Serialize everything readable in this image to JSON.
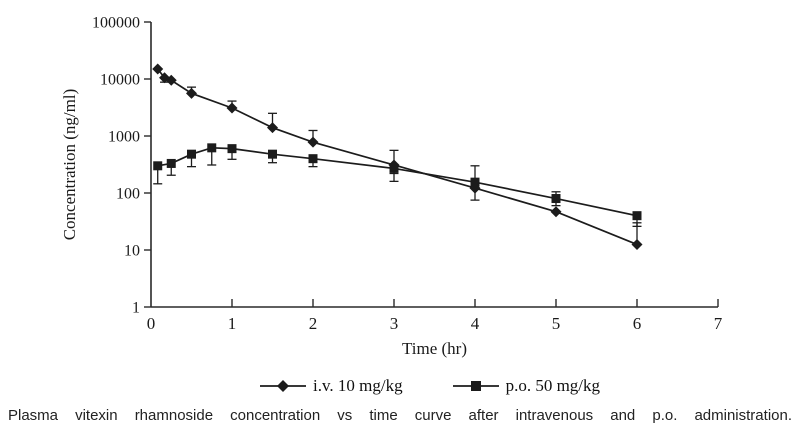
{
  "colors": {
    "axis": "#2a2a2a",
    "series": "#1c1c1c",
    "text": "#1a1a1a",
    "background": "#ffffff"
  },
  "chart_data": {
    "type": "line",
    "title": "",
    "xlabel": "Time (hr)",
    "ylabel": "Concentration (ng/ml)",
    "x_ticks": [
      0,
      1,
      2,
      3,
      4,
      5,
      6,
      7
    ],
    "xlim": [
      0,
      7
    ],
    "y_scale": "log",
    "y_ticks": [
      1,
      10,
      100,
      1000,
      10000,
      100000
    ],
    "ylim": [
      1,
      100000
    ],
    "grid": false,
    "legend_position": "bottom",
    "series": [
      {
        "name": "i.v. 10 mg/kg",
        "marker": "diamond",
        "x": [
          0.083,
          0.167,
          0.25,
          0.5,
          1,
          1.5,
          2,
          3,
          4,
          5,
          6
        ],
        "y": [
          15000,
          10500,
          9500,
          5600,
          3100,
          1400,
          780,
          310,
          122,
          47,
          12.5
        ],
        "err_lo": [
          15000,
          8800,
          9500,
          5600,
          3100,
          1400,
          780,
          220,
          75,
          47,
          12.5
        ],
        "err_hi": [
          15000,
          10500,
          9500,
          7200,
          4100,
          2500,
          1250,
          560,
          122,
          47,
          30
        ]
      },
      {
        "name": "p.o. 50 mg/kg",
        "marker": "square",
        "x": [
          0.083,
          0.25,
          0.5,
          0.75,
          1,
          1.5,
          2,
          3,
          4,
          5,
          6
        ],
        "y": [
          300,
          330,
          480,
          620,
          600,
          480,
          400,
          270,
          155,
          80,
          40
        ],
        "err_lo": [
          145,
          205,
          290,
          310,
          390,
          340,
          290,
          160,
          140,
          60,
          26
        ],
        "err_hi": [
          300,
          330,
          480,
          620,
          600,
          480,
          400,
          270,
          300,
          105,
          40
        ]
      }
    ]
  },
  "legend": {
    "items": [
      {
        "label": "i.v. 10 mg/kg",
        "marker": "diamond"
      },
      {
        "label": "p.o. 50 mg/kg",
        "marker": "square"
      }
    ]
  },
  "caption": "Plasma vitexin rhamnoside concentration vs time curve after intravenous and p.o. administration."
}
